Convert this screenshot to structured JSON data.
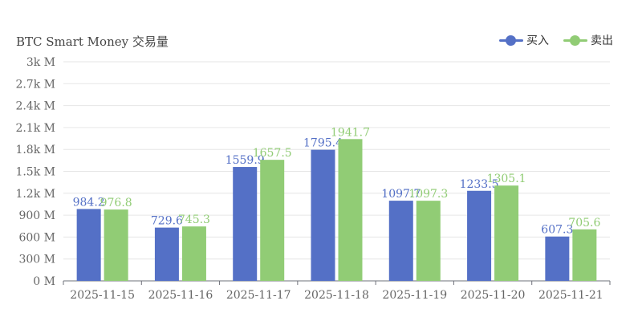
{
  "chart_data": {
    "type": "bar",
    "title": "BTC Smart Money 交易量",
    "categories": [
      "2025-11-15",
      "2025-11-16",
      "2025-11-17",
      "2025-11-18",
      "2025-11-19",
      "2025-11-20",
      "2025-11-21"
    ],
    "series": [
      {
        "name": "买入",
        "color": "#5470c6",
        "values": [
          984.2,
          729.6,
          1559.9,
          1795.4,
          1097.7,
          1233.5,
          607.3
        ]
      },
      {
        "name": "卖出",
        "color": "#91cc75",
        "values": [
          976.8,
          745.3,
          1657.5,
          1941.7,
          1097.3,
          1305.1,
          705.6
        ]
      }
    ],
    "ylim": [
      0,
      3000
    ],
    "yticks": [
      0,
      300,
      600,
      900,
      1200,
      1500,
      1800,
      2100,
      2400,
      2700,
      3000
    ],
    "ytick_labels": [
      "0 M",
      "300 M",
      "600 M",
      "900 M",
      "1.2k M",
      "1.5k M",
      "1.8k M",
      "2.1k M",
      "2.4k M",
      "2.7k M",
      "3k M"
    ],
    "grid": true,
    "legend_position": "top-right"
  }
}
